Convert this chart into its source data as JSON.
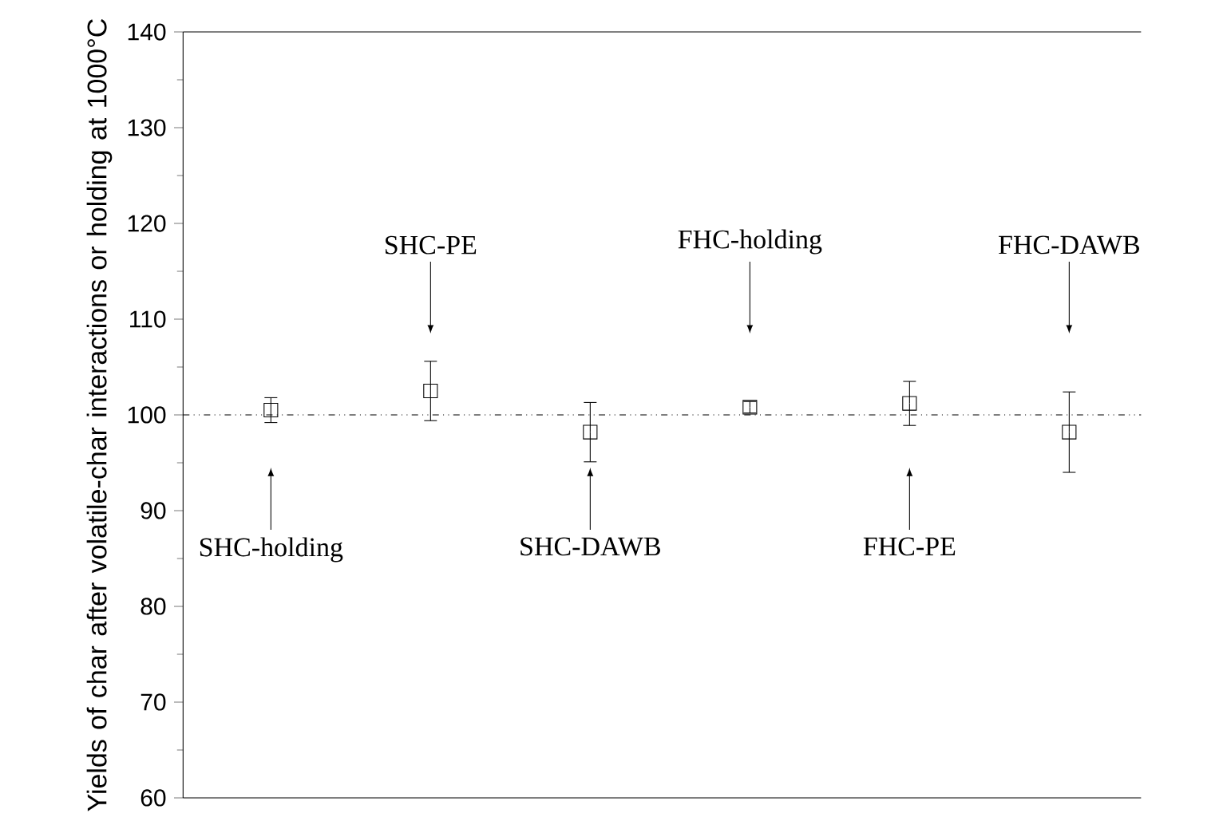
{
  "chart_data": {
    "type": "scatter",
    "ylabel": "Yields of char after volatile-char interactions or holding at 1000°C",
    "categories": [
      null,
      null,
      null,
      null,
      null,
      null
    ],
    "values": [
      100.5,
      102.5,
      98.2,
      100.8,
      101.2,
      98.2
    ],
    "errors": [
      1.3,
      3.1,
      3.1,
      0.6,
      2.3,
      4.2
    ],
    "color": "#000000",
    "marker": "square",
    "ylim": [
      60,
      140
    ],
    "yticks": [
      60,
      70,
      80,
      90,
      100,
      110,
      120,
      130,
      140
    ],
    "tick_labels": "y",
    "ref_lines": [
      {
        "axis": "y",
        "value": 100,
        "line_style": "dashdotdot",
        "color": "#000000"
      }
    ],
    "annotations": [
      "SHC-holding",
      "SHC-PE",
      "SHC-DAWB",
      "FHC-holding",
      "FHC-PE",
      "FHC-DAWB"
    ]
  }
}
